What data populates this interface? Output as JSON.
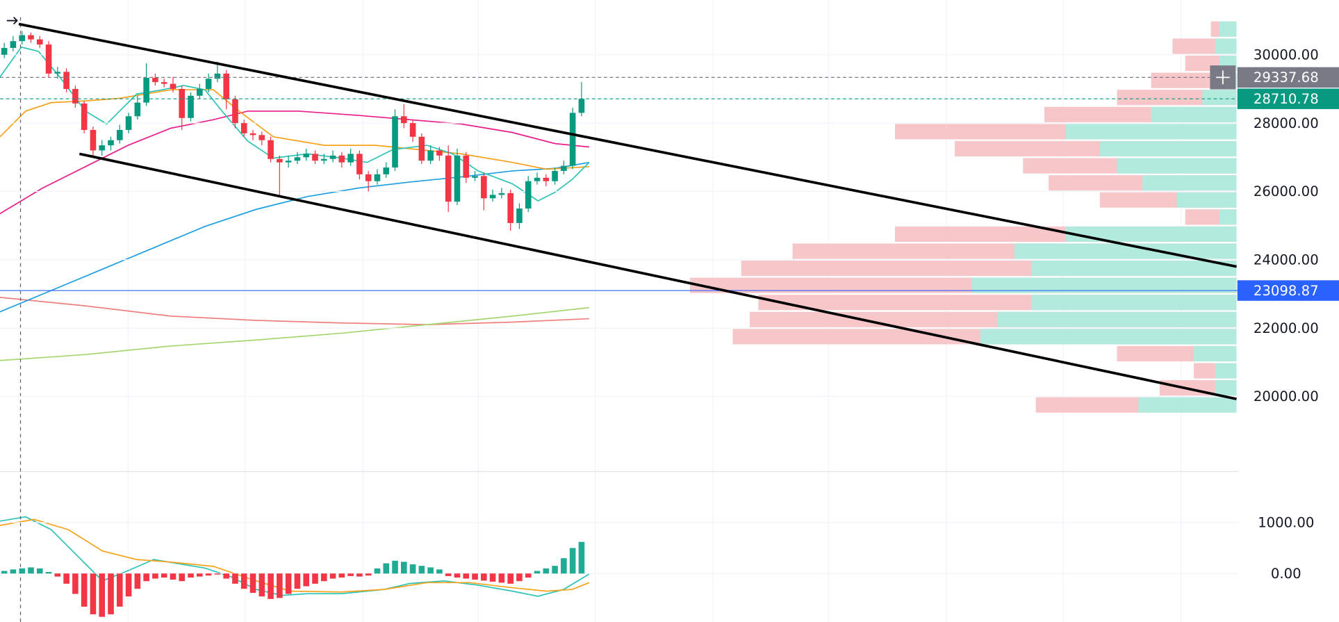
{
  "chart_data": [
    {
      "type": "candlestick",
      "ylim": [
        17800,
        31600
      ],
      "yticks": [
        {
          "value": 30000,
          "label": "30000.00"
        },
        {
          "value": 28000,
          "label": "28000.00"
        },
        {
          "value": 26000,
          "label": "26000.00"
        },
        {
          "value": 24000,
          "label": "24000.00"
        },
        {
          "value": 22000,
          "label": "22000.00"
        },
        {
          "value": 20000,
          "label": "20000.00"
        }
      ],
      "up_color": "#089981",
      "down_color": "#f23645",
      "open": [
        30000,
        30200,
        30400,
        30575,
        30450,
        30300,
        29450,
        29500,
        29000,
        28575,
        27800,
        27200,
        27350,
        27500,
        27800,
        28200,
        28600,
        29325,
        29200,
        29150,
        29000,
        28150,
        28800,
        29000,
        29300,
        29450,
        28700,
        28000,
        27700,
        27650,
        27500,
        26950,
        26850,
        26900,
        27000,
        27100,
        26900,
        26950,
        27050,
        26850,
        27100,
        26500,
        26300,
        26500,
        26700,
        28200,
        28000,
        27600,
        26900,
        27200,
        27050,
        25700,
        27050,
        26400,
        26450,
        25800,
        25900,
        25950,
        25075,
        25500,
        26300,
        26400,
        26300,
        26600,
        26750,
        28300
      ],
      "high": [
        30350,
        30550,
        30700,
        30650,
        30550,
        30400,
        29650,
        29600,
        29100,
        28650,
        27900,
        27500,
        27600,
        27950,
        28300,
        28800,
        29750,
        29450,
        29300,
        29350,
        29100,
        28900,
        29150,
        29450,
        29800,
        29550,
        28800,
        28100,
        27800,
        27750,
        27600,
        27050,
        27050,
        27150,
        27250,
        27200,
        27100,
        27200,
        27150,
        27250,
        27200,
        26600,
        26650,
        26850,
        28400,
        28550,
        28100,
        27700,
        27350,
        27300,
        27350,
        27250,
        27150,
        26600,
        26550,
        26050,
        26100,
        26050,
        25650,
        26450,
        26550,
        26500,
        26700,
        26900,
        28450,
        29200
      ],
      "low": [
        29900,
        30100,
        30300,
        30350,
        30200,
        29350,
        29300,
        28900,
        28450,
        27700,
        27050,
        27050,
        27200,
        27400,
        27700,
        28100,
        28500,
        29100,
        29050,
        28900,
        27800,
        28050,
        28700,
        28900,
        29200,
        28400,
        27850,
        27600,
        27500,
        27350,
        26850,
        25850,
        26700,
        26800,
        26900,
        26800,
        26800,
        26850,
        26700,
        26750,
        26350,
        26000,
        26200,
        26400,
        26600,
        27850,
        27450,
        26800,
        26800,
        26900,
        25400,
        25600,
        26250,
        26300,
        25450,
        25700,
        25800,
        24850,
        24900,
        25400,
        26200,
        26150,
        26200,
        26500,
        26650,
        28200
      ],
      "close": [
        30200,
        30400,
        30575,
        30450,
        30300,
        29450,
        29500,
        29000,
        28575,
        27800,
        27200,
        27350,
        27500,
        27800,
        28200,
        28600,
        29325,
        29200,
        29150,
        29000,
        28150,
        28800,
        29000,
        29300,
        29450,
        28700,
        28000,
        27700,
        27650,
        27500,
        26950,
        26850,
        26900,
        27000,
        27100,
        26900,
        26950,
        27050,
        26850,
        27100,
        26500,
        26300,
        26500,
        26700,
        28200,
        28000,
        27600,
        26900,
        27200,
        27050,
        25700,
        27050,
        26400,
        26450,
        25800,
        25900,
        25950,
        25075,
        25500,
        26300,
        26400,
        26300,
        26600,
        26750,
        28300,
        28710
      ],
      "price_tags": [
        {
          "value": 29337.68,
          "color": "#787b86"
        },
        {
          "value": 28710.78,
          "color": "#089981"
        },
        {
          "value": 23098.87,
          "color": "#2962ff"
        }
      ],
      "volume_profile": {
        "prices": [
          30750,
          30250,
          29750,
          29250,
          28750,
          28250,
          27750,
          27250,
          26750,
          26250,
          25750,
          25250,
          24750,
          24250,
          23750,
          23250,
          22750,
          22250,
          21750,
          21250,
          20750,
          20250,
          19750
        ],
        "total": [
          30,
          75,
          60,
          100,
          140,
          225,
          400,
          330,
          250,
          220,
          160,
          60,
          400,
          520,
          580,
          640,
          560,
          570,
          590,
          140,
          50,
          90,
          235
        ],
        "up": [
          20,
          25,
          20,
          30,
          40,
          100,
          200,
          160,
          140,
          110,
          70,
          20,
          200,
          260,
          240,
          310,
          240,
          280,
          300,
          50,
          25,
          25,
          115
        ],
        "up_color": "#b2ebdd",
        "down_color": "#f7c6c9"
      }
    },
    {
      "type": "bar",
      "ylim": [
        -949,
        1949
      ],
      "yticks": [
        {
          "value": 1000,
          "label": "1000.00"
        },
        {
          "value": 0,
          "label": "0.00"
        }
      ],
      "up_color": "#22ab94",
      "down_color": "#f23645",
      "values": [
        50,
        80,
        100,
        120,
        100,
        30,
        -60,
        -200,
        -400,
        -650,
        -800,
        -850,
        -800,
        -650,
        -450,
        -300,
        -150,
        -100,
        -80,
        -120,
        -150,
        -80,
        -60,
        -40,
        -20,
        -100,
        -200,
        -300,
        -380,
        -450,
        -500,
        -480,
        -400,
        -300,
        -250,
        -200,
        -150,
        -100,
        -80,
        -50,
        -60,
        -40,
        100,
        200,
        250,
        230,
        180,
        150,
        120,
        80,
        -50,
        -80,
        -100,
        -120,
        -140,
        -160,
        -180,
        -200,
        -150,
        -80,
        50,
        100,
        150,
        300,
        500,
        620
      ]
    }
  ]
}
